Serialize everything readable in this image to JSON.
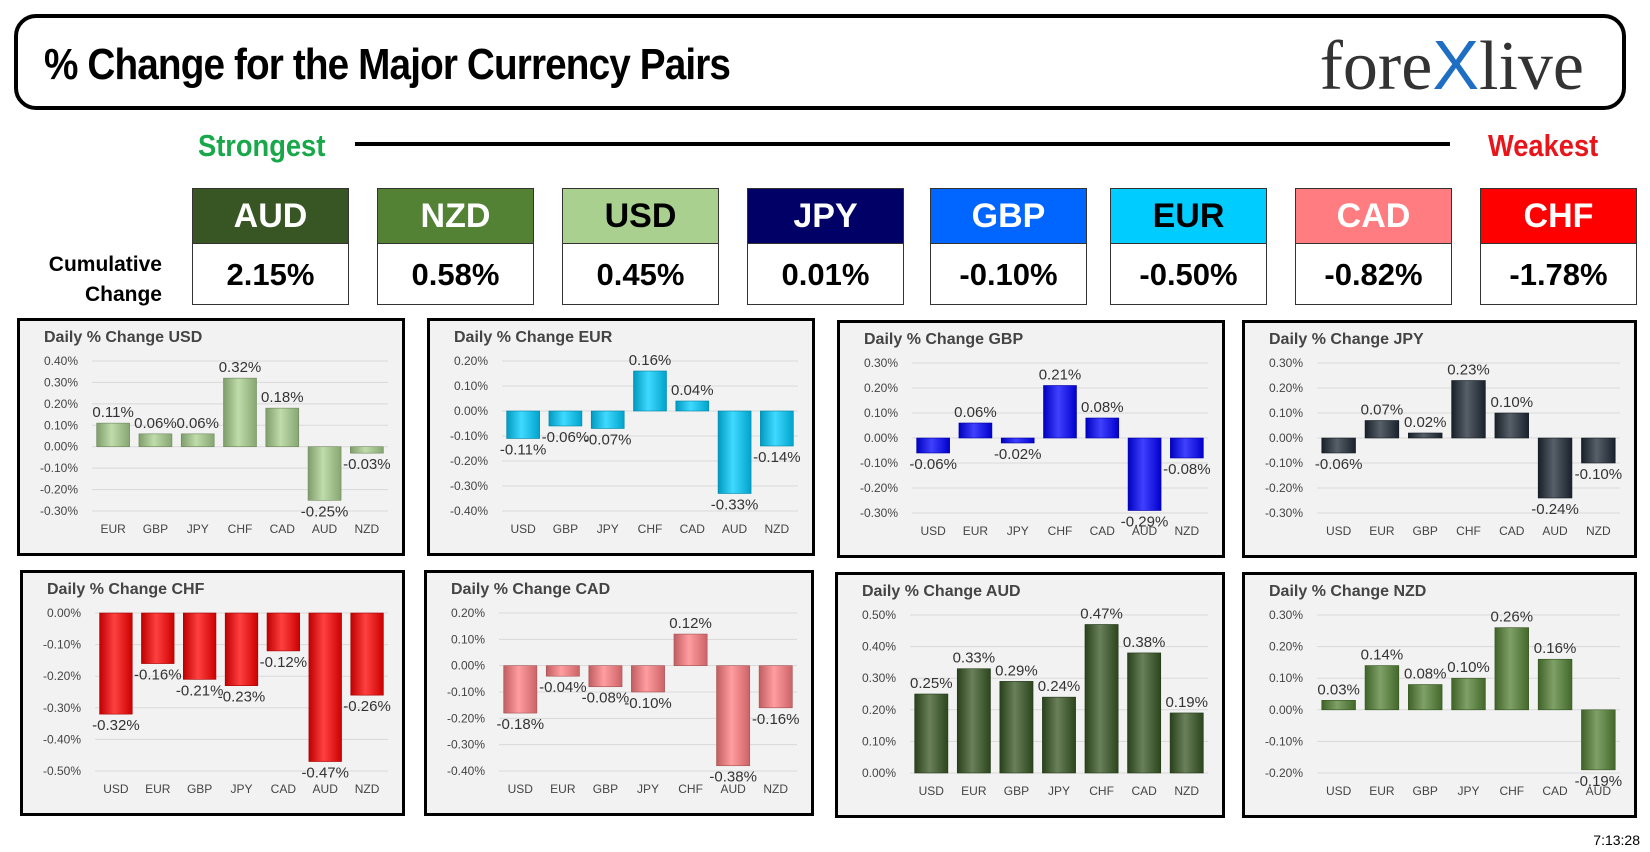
{
  "header": {
    "title": "% Change for the Major Currency Pairs",
    "logo_left": "fore",
    "logo_x": "X",
    "logo_right": "live"
  },
  "strength": {
    "strongest": "Strongest",
    "weakest": "Weakest",
    "cumulative_label_1": "Cumulative",
    "cumulative_label_2": "Change"
  },
  "currencies": [
    {
      "code": "AUD",
      "value": "2.15%",
      "bg": "#375623",
      "fg": "#ffffff"
    },
    {
      "code": "NZD",
      "value": "0.58%",
      "bg": "#548235",
      "fg": "#ffffff"
    },
    {
      "code": "USD",
      "value": "0.45%",
      "bg": "#a9d08e",
      "fg": "#000000"
    },
    {
      "code": "JPY",
      "value": "0.01%",
      "bg": "#000066",
      "fg": "#ffffff"
    },
    {
      "code": "GBP",
      "value": "-0.10%",
      "bg": "#0066ff",
      "fg": "#ffffff"
    },
    {
      "code": "EUR",
      "value": "-0.50%",
      "bg": "#00ccff",
      "fg": "#000000"
    },
    {
      "code": "CAD",
      "value": "-0.82%",
      "bg": "#ff7c80",
      "fg": "#ffffff"
    },
    {
      "code": "CHF",
      "value": "-1.78%",
      "bg": "#ff0000",
      "fg": "#ffffff"
    }
  ],
  "timestamp": "7:13:28",
  "chart_data": [
    {
      "type": "bar",
      "title": "Daily % Change USD",
      "color": "#a9d08e",
      "categories": [
        "EUR",
        "GBP",
        "JPY",
        "CHF",
        "CAD",
        "AUD",
        "NZD"
      ],
      "values": [
        0.11,
        0.06,
        0.06,
        0.32,
        0.18,
        -0.25,
        -0.03
      ],
      "labels": [
        "0.11%",
        "0.06%",
        "0.06%",
        "0.32%",
        "0.18%",
        "-0.25%",
        "-0.03%"
      ],
      "yticks": [
        0.4,
        0.3,
        0.2,
        0.1,
        0.0,
        -0.1,
        -0.2,
        -0.3
      ],
      "ylim": [
        -0.3,
        0.4
      ]
    },
    {
      "type": "bar",
      "title": "Daily % Change EUR",
      "color": "#00ccff",
      "categories": [
        "USD",
        "GBP",
        "JPY",
        "CHF",
        "CAD",
        "AUD",
        "NZD"
      ],
      "values": [
        -0.11,
        -0.06,
        -0.07,
        0.16,
        0.04,
        -0.33,
        -0.14
      ],
      "labels": [
        "-0.11%",
        "-0.06%",
        "-0.07%",
        "0.16%",
        "0.04%",
        "-0.33%",
        "-0.14%"
      ],
      "yticks": [
        0.2,
        0.1,
        0.0,
        -0.1,
        -0.2,
        -0.3,
        -0.4
      ],
      "ylim": [
        -0.4,
        0.2
      ]
    },
    {
      "type": "bar",
      "title": "Daily % Change GBP",
      "color": "#0000ff",
      "categories": [
        "USD",
        "EUR",
        "JPY",
        "CHF",
        "CAD",
        "AUD",
        "NZD"
      ],
      "values": [
        -0.06,
        0.06,
        -0.02,
        0.21,
        0.08,
        -0.29,
        -0.08
      ],
      "labels": [
        "-0.06%",
        "0.06%",
        "-0.02%",
        "0.21%",
        "0.08%",
        "-0.29%",
        "-0.08%"
      ],
      "yticks": [
        0.3,
        0.2,
        0.1,
        0.0,
        -0.1,
        -0.2,
        -0.3
      ],
      "ylim": [
        -0.3,
        0.3
      ]
    },
    {
      "type": "bar",
      "title": "Daily % Change JPY",
      "color": "#1f2937",
      "categories": [
        "USD",
        "EUR",
        "GBP",
        "CHF",
        "CAD",
        "AUD",
        "NZD"
      ],
      "values": [
        -0.06,
        0.07,
        0.02,
        0.23,
        0.1,
        -0.24,
        -0.1
      ],
      "labels": [
        "-0.06%",
        "0.07%",
        "0.02%",
        "0.23%",
        "0.10%",
        "-0.24%",
        "-0.10%"
      ],
      "yticks": [
        0.3,
        0.2,
        0.1,
        0.0,
        -0.1,
        -0.2,
        -0.3
      ],
      "ylim": [
        -0.3,
        0.3
      ]
    },
    {
      "type": "bar",
      "title": "Daily % Change CHF",
      "color": "#ff0000",
      "categories": [
        "USD",
        "EUR",
        "GBP",
        "JPY",
        "CAD",
        "AUD",
        "NZD"
      ],
      "values": [
        -0.32,
        -0.16,
        -0.21,
        -0.23,
        -0.12,
        -0.47,
        -0.26
      ],
      "labels": [
        "-0.32%",
        "-0.16%",
        "-0.21%",
        "-0.23%",
        "-0.12%",
        "-0.47%",
        "-0.26%"
      ],
      "yticks": [
        0.0,
        -0.1,
        -0.2,
        -0.3,
        -0.4,
        -0.5
      ],
      "ylim": [
        -0.5,
        0.0
      ]
    },
    {
      "type": "bar",
      "title": "Daily % Change CAD",
      "color": "#ff7c80",
      "categories": [
        "USD",
        "EUR",
        "GBP",
        "JPY",
        "CHF",
        "AUD",
        "NZD"
      ],
      "values": [
        -0.18,
        -0.04,
        -0.08,
        -0.1,
        0.12,
        -0.38,
        -0.16
      ],
      "labels": [
        "-0.18%",
        "-0.04%",
        "-0.08%",
        "-0.10%",
        "0.12%",
        "-0.38%",
        "-0.16%"
      ],
      "yticks": [
        0.2,
        0.1,
        0.0,
        -0.1,
        -0.2,
        -0.3,
        -0.4
      ],
      "ylim": [
        -0.4,
        0.2
      ]
    },
    {
      "type": "bar",
      "title": "Daily % Change AUD",
      "color": "#375623",
      "categories": [
        "USD",
        "EUR",
        "GBP",
        "JPY",
        "CHF",
        "CAD",
        "NZD"
      ],
      "values": [
        0.25,
        0.33,
        0.29,
        0.24,
        0.47,
        0.38,
        0.19
      ],
      "labels": [
        "0.25%",
        "0.33%",
        "0.29%",
        "0.24%",
        "0.47%",
        "0.38%",
        "0.19%"
      ],
      "yticks": [
        0.5,
        0.4,
        0.3,
        0.2,
        0.1,
        0.0
      ],
      "ylim": [
        0.0,
        0.5
      ]
    },
    {
      "type": "bar",
      "title": "Daily % Change NZD",
      "color": "#548235",
      "categories": [
        "USD",
        "EUR",
        "GBP",
        "JPY",
        "CHF",
        "CAD",
        "AUD"
      ],
      "values": [
        0.03,
        0.14,
        0.08,
        0.1,
        0.26,
        0.16,
        -0.19
      ],
      "labels": [
        "0.03%",
        "0.14%",
        "0.08%",
        "0.10%",
        "0.26%",
        "0.16%",
        "-0.19%"
      ],
      "yticks": [
        0.3,
        0.2,
        0.1,
        0.0,
        -0.1,
        -0.2
      ],
      "ylim": [
        -0.2,
        0.3
      ]
    }
  ]
}
